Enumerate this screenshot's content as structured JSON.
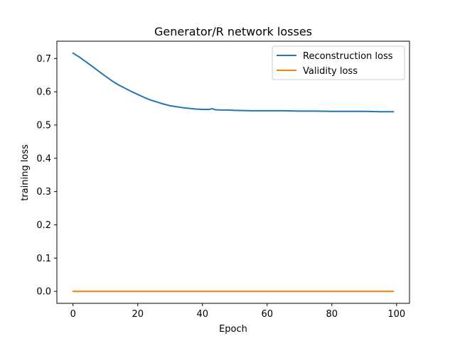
{
  "chart_data": {
    "type": "line",
    "title": "Generator/R network losses",
    "xlabel": "Epoch",
    "ylabel": "training loss",
    "xlim": [
      -5,
      104
    ],
    "ylim": [
      -0.036,
      0.752
    ],
    "x_ticks": [
      0,
      20,
      40,
      60,
      80,
      100
    ],
    "y_ticks": [
      0.0,
      0.1,
      0.2,
      0.3,
      0.4,
      0.5,
      0.6,
      0.7
    ],
    "grid": false,
    "legend_position": "upper right",
    "series": [
      {
        "name": "Reconstruction loss",
        "color": "#1f77b4",
        "x": [
          0,
          2,
          4,
          6,
          8,
          10,
          12,
          14,
          16,
          18,
          20,
          22,
          24,
          26,
          28,
          30,
          32,
          34,
          36,
          38,
          40,
          42,
          43,
          44,
          46,
          48,
          50,
          55,
          60,
          65,
          70,
          75,
          80,
          85,
          90,
          95,
          99
        ],
        "y": [
          0.716,
          0.704,
          0.69,
          0.676,
          0.661,
          0.647,
          0.633,
          0.621,
          0.611,
          0.601,
          0.592,
          0.583,
          0.575,
          0.569,
          0.563,
          0.558,
          0.555,
          0.552,
          0.55,
          0.548,
          0.547,
          0.547,
          0.549,
          0.546,
          0.545,
          0.545,
          0.544,
          0.543,
          0.543,
          0.543,
          0.542,
          0.542,
          0.541,
          0.541,
          0.541,
          0.54,
          0.54
        ]
      },
      {
        "name": "Validity loss",
        "color": "#ff7f0e",
        "x": [
          0,
          99
        ],
        "y": [
          0.0,
          0.0
        ]
      }
    ]
  }
}
